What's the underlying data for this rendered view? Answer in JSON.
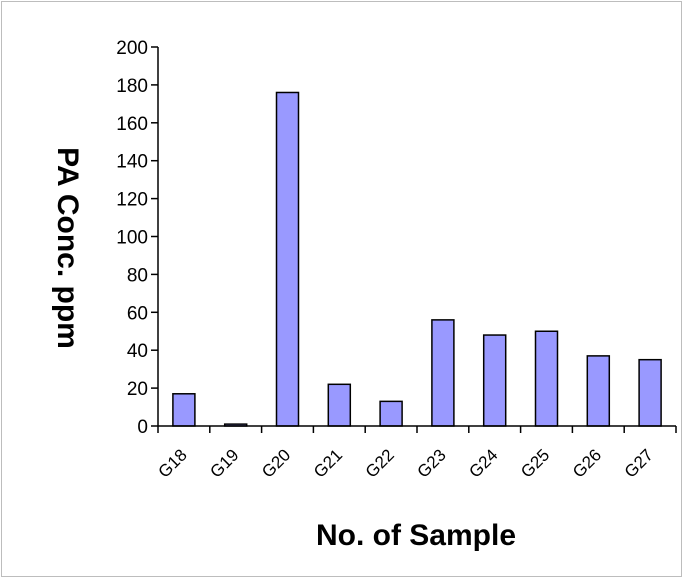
{
  "chart_data": {
    "type": "bar",
    "categories": [
      "G18",
      "G19",
      "G20",
      "G21",
      "G22",
      "G23",
      "G24",
      "G25",
      "G26",
      "G27"
    ],
    "values": [
      17,
      1,
      176,
      22,
      13,
      56,
      48,
      50,
      37,
      35
    ],
    "title": "",
    "xlabel": "No. of Sample",
    "ylabel": "PA Conc. ppm",
    "ylim": [
      0,
      200
    ],
    "yticks": [
      0,
      20,
      40,
      60,
      80,
      100,
      120,
      140,
      160,
      180,
      200
    ],
    "bar_color": "#9999ff",
    "bar_stroke": "#000000",
    "grid": false,
    "legend": "none"
  }
}
